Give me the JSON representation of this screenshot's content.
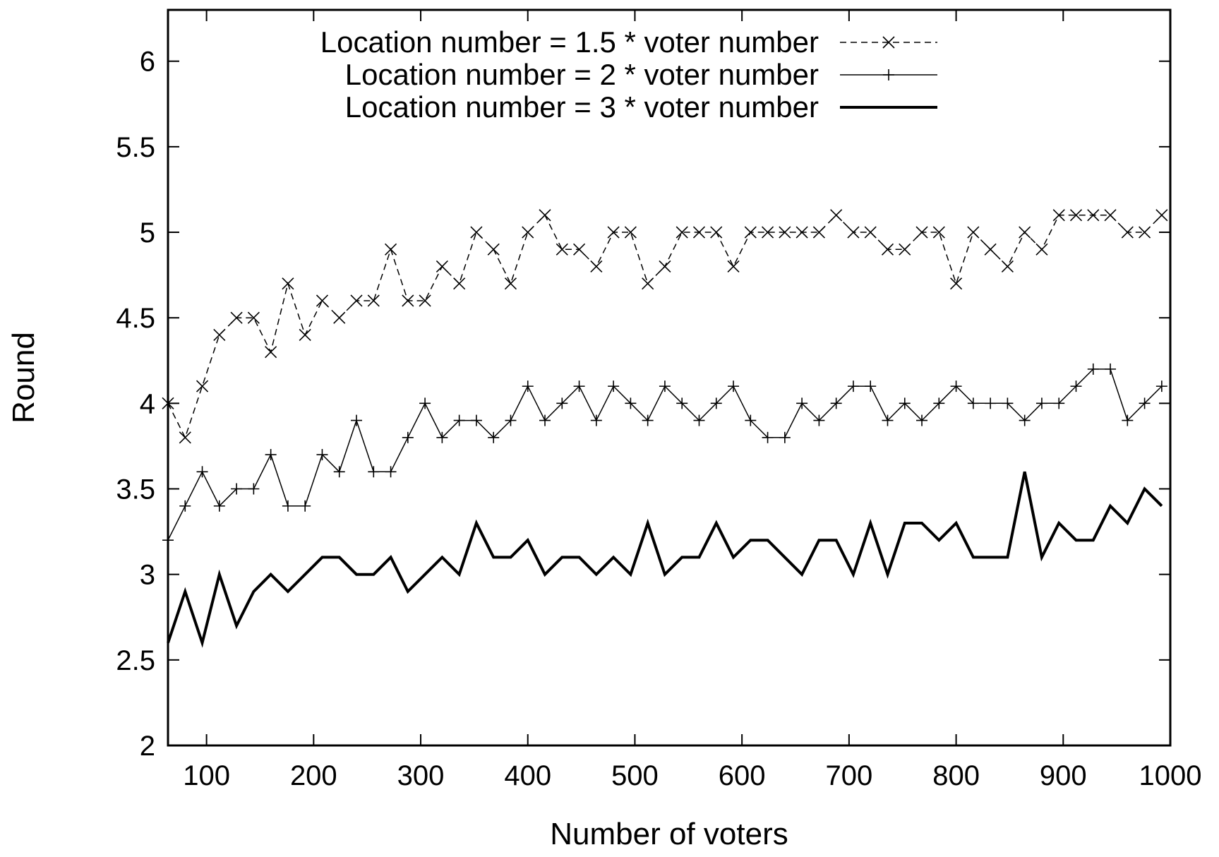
{
  "chart_data": {
    "type": "line",
    "xlabel": "Number of voters",
    "ylabel": "Round",
    "xlim": [
      64,
      1000
    ],
    "ylim": [
      2,
      6.3
    ],
    "xticks": [
      100,
      200,
      300,
      400,
      500,
      600,
      700,
      800,
      900,
      1000
    ],
    "yticks": [
      2,
      2.5,
      3,
      3.5,
      4,
      4.5,
      5,
      5.5,
      6
    ],
    "ytick_labels": [
      "2",
      "2.5",
      "3",
      "3.5",
      "4",
      "4.5",
      "5",
      "5.5",
      "6"
    ],
    "legend_position": "top",
    "grid": false,
    "x": [
      64,
      80,
      96,
      112,
      128,
      144,
      160,
      176,
      192,
      208,
      224,
      240,
      256,
      272,
      288,
      304,
      320,
      336,
      352,
      368,
      384,
      400,
      416,
      432,
      448,
      464,
      480,
      496,
      512,
      528,
      544,
      560,
      576,
      592,
      608,
      624,
      640,
      656,
      672,
      688,
      704,
      720,
      736,
      752,
      768,
      784,
      800,
      816,
      832,
      848,
      864,
      880,
      896,
      912,
      928,
      944,
      960,
      976,
      992
    ],
    "series": [
      {
        "name": "Location number = 1.5 * voter number",
        "style": "dashed-x",
        "values": [
          4.0,
          3.8,
          4.1,
          4.4,
          4.5,
          4.5,
          4.3,
          4.7,
          4.4,
          4.6,
          4.5,
          4.6,
          4.6,
          4.9,
          4.6,
          4.6,
          4.8,
          4.7,
          5.0,
          4.9,
          4.7,
          5.0,
          5.1,
          4.9,
          4.9,
          4.8,
          5.0,
          5.0,
          4.7,
          4.8,
          5.0,
          5.0,
          5.0,
          4.8,
          5.0,
          5.0,
          5.0,
          5.0,
          5.0,
          5.1,
          5.0,
          5.0,
          4.9,
          4.9,
          5.0,
          5.0,
          4.7,
          5.0,
          4.9,
          4.8,
          5.0,
          4.9,
          5.1,
          5.1,
          5.1,
          5.1,
          5.0,
          5.0,
          5.1
        ]
      },
      {
        "name": "Location number = 2 * voter number",
        "style": "thin-plus",
        "values": [
          3.2,
          3.4,
          3.6,
          3.4,
          3.5,
          3.5,
          3.7,
          3.4,
          3.4,
          3.7,
          3.6,
          3.9,
          3.6,
          3.6,
          3.8,
          4.0,
          3.8,
          3.9,
          3.9,
          3.8,
          3.9,
          4.1,
          3.9,
          4.0,
          4.1,
          3.9,
          4.1,
          4.0,
          3.9,
          4.1,
          4.0,
          3.9,
          4.0,
          4.1,
          3.9,
          3.8,
          3.8,
          4.0,
          3.9,
          4.0,
          4.1,
          4.1,
          3.9,
          4.0,
          3.9,
          4.0,
          4.1,
          4.0,
          4.0,
          4.0,
          3.9,
          4.0,
          4.0,
          4.1,
          4.2,
          4.2,
          3.9,
          4.0,
          4.1
        ]
      },
      {
        "name": "Location number = 3 * voter number",
        "style": "thick",
        "values": [
          2.6,
          2.9,
          2.6,
          3.0,
          2.7,
          2.9,
          3.0,
          2.9,
          3.0,
          3.1,
          3.1,
          3.0,
          3.0,
          3.1,
          2.9,
          3.0,
          3.1,
          3.0,
          3.3,
          3.1,
          3.1,
          3.2,
          3.0,
          3.1,
          3.1,
          3.0,
          3.1,
          3.0,
          3.3,
          3.0,
          3.1,
          3.1,
          3.3,
          3.1,
          3.2,
          3.2,
          3.1,
          3.0,
          3.2,
          3.2,
          3.0,
          3.3,
          3.0,
          3.3,
          3.3,
          3.2,
          3.3,
          3.1,
          3.1,
          3.1,
          3.6,
          3.1,
          3.3,
          3.2,
          3.2,
          3.4,
          3.3,
          3.5,
          3.4
        ]
      }
    ]
  }
}
